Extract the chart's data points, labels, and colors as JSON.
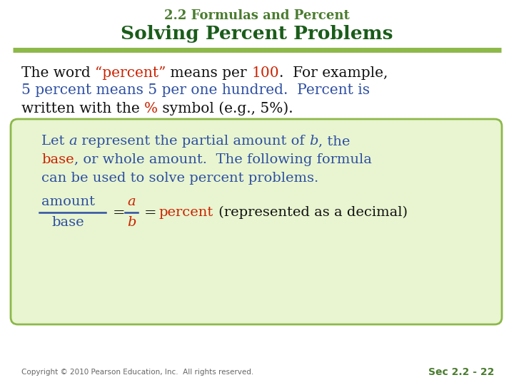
{
  "title_top": "2.2 Formulas and Percent",
  "title_main": "Solving Percent Problems",
  "title_top_color": "#4a7c2f",
  "title_main_color": "#1a5c1a",
  "line_color": "#8db84a",
  "background_color": "#ffffff",
  "box_fill_color": "#e8f5d0",
  "box_edge_color": "#8db84a",
  "footer_left": "Copyright © 2010 Pearson Education, Inc.  All rights reserved.",
  "footer_right": "Sec 2.2 - 22",
  "footer_color": "#4a7c2f",
  "black": "#111111",
  "blue": "#2e4fa3",
  "red": "#cc2200"
}
